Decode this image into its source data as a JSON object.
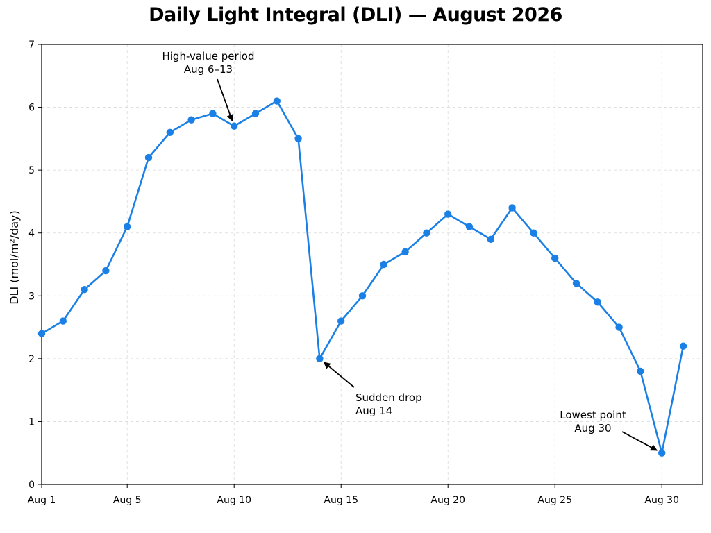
{
  "chart_data": {
    "type": "line",
    "title": "Daily Light Integral (DLI) — August 2026",
    "xlabel": "",
    "ylabel": "DLI (mol/m²/day)",
    "ylim": [
      0,
      7
    ],
    "xlim": [
      1,
      32
    ],
    "grid": true,
    "color": "#1a80e6",
    "x_ticks": [
      {
        "day": 1,
        "label": "Aug 1"
      },
      {
        "day": 5,
        "label": "Aug 5"
      },
      {
        "day": 10,
        "label": "Aug 10"
      },
      {
        "day": 15,
        "label": "Aug 15"
      },
      {
        "day": 20,
        "label": "Aug 20"
      },
      {
        "day": 25,
        "label": "Aug 25"
      },
      {
        "day": 30,
        "label": "Aug 30"
      }
    ],
    "y_ticks": [
      "0",
      "1",
      "2",
      "3",
      "4",
      "5",
      "6",
      "7"
    ],
    "x": [
      1,
      2,
      3,
      4,
      5,
      6,
      7,
      8,
      9,
      10,
      11,
      12,
      13,
      14,
      15,
      16,
      17,
      18,
      19,
      20,
      21,
      22,
      23,
      24,
      25,
      26,
      27,
      28,
      29,
      30,
      31
    ],
    "values": [
      2.4,
      2.6,
      3.1,
      3.4,
      4.1,
      5.2,
      5.6,
      5.8,
      5.9,
      5.7,
      5.9,
      6.1,
      5.5,
      2.0,
      2.6,
      3.0,
      3.5,
      3.7,
      4.0,
      4.3,
      4.1,
      3.9,
      4.4,
      4.0,
      3.6,
      3.2,
      2.9,
      2.5,
      1.8,
      0.5,
      2.2
    ],
    "annotations": [
      {
        "lines": [
          "High-value period",
          "Aug 6–13"
        ],
        "target_day": 10,
        "target_value": 5.7
      },
      {
        "lines": [
          "Sudden drop",
          "Aug 14"
        ],
        "target_day": 14,
        "target_value": 2.0
      },
      {
        "lines": [
          "Lowest point",
          "Aug 30"
        ],
        "target_day": 30,
        "target_value": 0.5
      }
    ]
  }
}
